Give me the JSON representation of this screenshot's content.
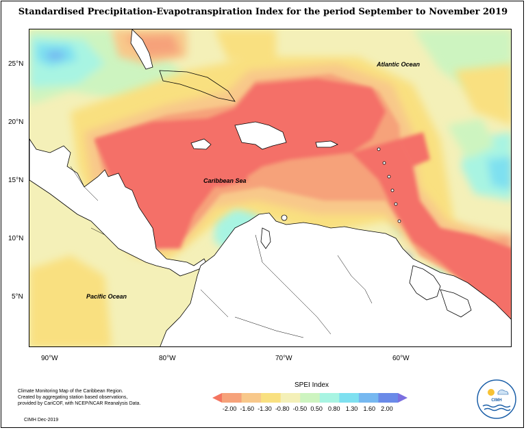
{
  "title": "Standardised Precipitation-Evapotranspiration Index for the period September to November 2019",
  "labels": {
    "atlantic": "Atlantic Ocean",
    "caribbean": "Caribbean Sea",
    "pacific": "Pacific Ocean"
  },
  "axes": {
    "lat_ticks": [
      "25°N",
      "20°N",
      "15°N",
      "10°N",
      "5°N"
    ],
    "lon_ticks": [
      "90°W",
      "80°W",
      "70°W",
      "60°W"
    ]
  },
  "credits": {
    "line1": "Climate Monitoring Map of the Caribbean Region.",
    "line2": "Created by aggregating station based observations,",
    "line3": "provided by CariCOF, with NCEP/NCAR Reanalysis Data.",
    "stamp": "CIMH Dec-2019"
  },
  "legend": {
    "title": "SPEI Index",
    "ticks": [
      "-2.00",
      "-1.60",
      "-1.30",
      "-0.80",
      "-0.50",
      "0.50",
      "0.80",
      "1.30",
      "1.60",
      "2.00"
    ],
    "colors": [
      "#f47560",
      "#f6a27a",
      "#f8c88a",
      "#f9e080",
      "#f4f0b8",
      "#cdf4c0",
      "#a8f4e2",
      "#7ee0f0",
      "#76b8f0",
      "#6a8ae8",
      "#7b6fe0"
    ]
  },
  "logo": {
    "text": "CIMH"
  },
  "colors": {
    "deep_dry": "#f47068",
    "dry": "#f6a07c",
    "moderate": "#f8c88a",
    "mild": "#f9e27c",
    "neutral": "#eef6c0",
    "wet": "#a8f0e0",
    "very_wet": "#7edcf0",
    "extreme_wet": "#7a90e8"
  }
}
